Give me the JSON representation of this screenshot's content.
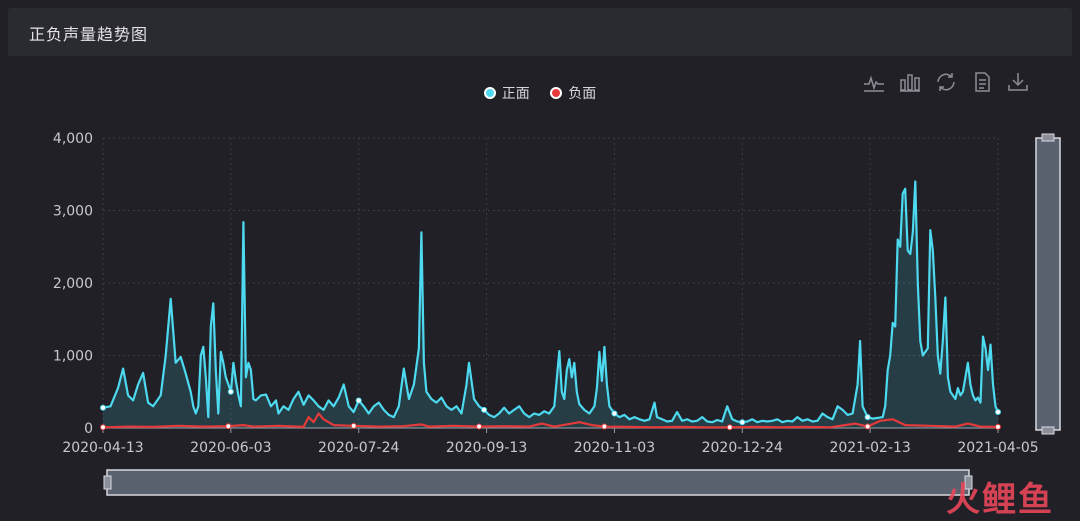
{
  "header": {
    "title": "正负声量趋势图"
  },
  "legend": {
    "items": [
      {
        "label": "正面",
        "color": "#4dd9ef"
      },
      {
        "label": "负面",
        "color": "#e53a3a"
      }
    ]
  },
  "toolbox": [
    "line-chart-icon",
    "bar-chart-icon",
    "refresh-icon",
    "data-view-icon",
    "download-icon"
  ],
  "watermark": {
    "text": "火鲤鱼"
  },
  "chart_data": {
    "type": "line",
    "x_ticks": [
      "2020-04-13",
      "2020-06-03",
      "2020-07-24",
      "2020-09-13",
      "2020-11-03",
      "2020-12-24",
      "2021-02-13",
      "2021-04-05"
    ],
    "y_ticks": [
      "0",
      "1,000",
      "2,000",
      "3,000",
      "4,000"
    ],
    "ylim": [
      0,
      4000
    ],
    "x_range_days": [
      0,
      357
    ],
    "grid": true,
    "legend_position": "top-center",
    "series": [
      {
        "name": "正面",
        "color": "#4dd9ef",
        "area": true,
        "points": [
          [
            0,
            280
          ],
          [
            3,
            300
          ],
          [
            6,
            550
          ],
          [
            8,
            820
          ],
          [
            10,
            450
          ],
          [
            12,
            380
          ],
          [
            14,
            600
          ],
          [
            16,
            760
          ],
          [
            18,
            350
          ],
          [
            20,
            300
          ],
          [
            23,
            450
          ],
          [
            25,
            1000
          ],
          [
            27,
            1780
          ],
          [
            29,
            900
          ],
          [
            31,
            980
          ],
          [
            33,
            750
          ],
          [
            35,
            500
          ],
          [
            36,
            300
          ],
          [
            37,
            200
          ],
          [
            38,
            300
          ],
          [
            39,
            1000
          ],
          [
            40,
            1120
          ],
          [
            41,
            700
          ],
          [
            42,
            150
          ],
          [
            43,
            1400
          ],
          [
            44,
            1720
          ],
          [
            45,
            800
          ],
          [
            46,
            200
          ],
          [
            47,
            1050
          ],
          [
            48,
            900
          ],
          [
            49,
            700
          ],
          [
            50,
            600
          ],
          [
            51,
            500
          ],
          [
            52,
            900
          ],
          [
            53,
            650
          ],
          [
            54,
            450
          ],
          [
            55,
            300
          ],
          [
            56,
            2840
          ],
          [
            57,
            700
          ],
          [
            58,
            900
          ],
          [
            59,
            800
          ],
          [
            60,
            400
          ],
          [
            61,
            380
          ],
          [
            63,
            450
          ],
          [
            65,
            460
          ],
          [
            67,
            300
          ],
          [
            69,
            380
          ],
          [
            70,
            200
          ],
          [
            72,
            300
          ],
          [
            74,
            250
          ],
          [
            76,
            400
          ],
          [
            78,
            500
          ],
          [
            80,
            320
          ],
          [
            82,
            450
          ],
          [
            84,
            380
          ],
          [
            86,
            300
          ],
          [
            88,
            250
          ],
          [
            90,
            380
          ],
          [
            92,
            300
          ],
          [
            94,
            420
          ],
          [
            96,
            600
          ],
          [
            98,
            300
          ],
          [
            100,
            220
          ],
          [
            102,
            380
          ],
          [
            104,
            300
          ],
          [
            106,
            200
          ],
          [
            108,
            300
          ],
          [
            110,
            350
          ],
          [
            112,
            250
          ],
          [
            114,
            180
          ],
          [
            116,
            150
          ],
          [
            118,
            300
          ],
          [
            120,
            820
          ],
          [
            122,
            400
          ],
          [
            124,
            600
          ],
          [
            126,
            1100
          ],
          [
            127,
            2700
          ],
          [
            128,
            900
          ],
          [
            129,
            500
          ],
          [
            131,
            400
          ],
          [
            133,
            350
          ],
          [
            135,
            420
          ],
          [
            137,
            300
          ],
          [
            139,
            250
          ],
          [
            141,
            300
          ],
          [
            143,
            200
          ],
          [
            145,
            600
          ],
          [
            146,
            900
          ],
          [
            148,
            400
          ],
          [
            150,
            300
          ],
          [
            152,
            250
          ],
          [
            154,
            180
          ],
          [
            156,
            150
          ],
          [
            158,
            200
          ],
          [
            160,
            280
          ],
          [
            162,
            200
          ],
          [
            164,
            250
          ],
          [
            166,
            300
          ],
          [
            168,
            200
          ],
          [
            170,
            150
          ],
          [
            172,
            200
          ],
          [
            174,
            180
          ],
          [
            176,
            230
          ],
          [
            178,
            200
          ],
          [
            180,
            300
          ],
          [
            182,
            1060
          ],
          [
            183,
            500
          ],
          [
            184,
            400
          ],
          [
            185,
            800
          ],
          [
            186,
            950
          ],
          [
            187,
            700
          ],
          [
            188,
            900
          ],
          [
            189,
            500
          ],
          [
            190,
            330
          ],
          [
            192,
            250
          ],
          [
            194,
            200
          ],
          [
            196,
            300
          ],
          [
            197,
            550
          ],
          [
            198,
            1050
          ],
          [
            199,
            650
          ],
          [
            200,
            1120
          ],
          [
            201,
            600
          ],
          [
            202,
            300
          ],
          [
            204,
            200
          ],
          [
            206,
            150
          ],
          [
            208,
            180
          ],
          [
            210,
            120
          ],
          [
            212,
            150
          ],
          [
            214,
            120
          ],
          [
            216,
            100
          ],
          [
            218,
            120
          ],
          [
            220,
            350
          ],
          [
            221,
            150
          ],
          [
            223,
            120
          ],
          [
            225,
            90
          ],
          [
            227,
            100
          ],
          [
            229,
            220
          ],
          [
            231,
            100
          ],
          [
            233,
            120
          ],
          [
            235,
            90
          ],
          [
            237,
            100
          ],
          [
            239,
            150
          ],
          [
            241,
            90
          ],
          [
            243,
            80
          ],
          [
            245,
            110
          ],
          [
            247,
            90
          ],
          [
            249,
            300
          ],
          [
            251,
            120
          ],
          [
            253,
            90
          ],
          [
            255,
            80
          ],
          [
            257,
            90
          ],
          [
            259,
            120
          ],
          [
            261,
            80
          ],
          [
            263,
            100
          ],
          [
            265,
            90
          ],
          [
            267,
            100
          ],
          [
            269,
            120
          ],
          [
            271,
            80
          ],
          [
            273,
            100
          ],
          [
            275,
            90
          ],
          [
            277,
            150
          ],
          [
            279,
            100
          ],
          [
            281,
            120
          ],
          [
            283,
            90
          ],
          [
            285,
            100
          ],
          [
            287,
            200
          ],
          [
            289,
            150
          ],
          [
            291,
            120
          ],
          [
            293,
            300
          ],
          [
            295,
            250
          ],
          [
            297,
            180
          ],
          [
            299,
            200
          ],
          [
            301,
            600
          ],
          [
            302,
            1200
          ],
          [
            303,
            300
          ],
          [
            305,
            150
          ],
          [
            307,
            130
          ],
          [
            309,
            140
          ],
          [
            311,
            150
          ],
          [
            312,
            300
          ],
          [
            313,
            800
          ],
          [
            314,
            1000
          ],
          [
            315,
            1450
          ],
          [
            316,
            1400
          ],
          [
            317,
            2600
          ],
          [
            318,
            2500
          ],
          [
            319,
            3230
          ],
          [
            320,
            3300
          ],
          [
            321,
            2450
          ],
          [
            322,
            2400
          ],
          [
            323,
            2700
          ],
          [
            324,
            3400
          ],
          [
            325,
            2000
          ],
          [
            326,
            1200
          ],
          [
            327,
            1000
          ],
          [
            328,
            1050
          ],
          [
            329,
            1100
          ],
          [
            330,
            2730
          ],
          [
            331,
            2450
          ],
          [
            332,
            1800
          ],
          [
            333,
            1000
          ],
          [
            334,
            750
          ],
          [
            335,
            1200
          ],
          [
            336,
            1800
          ],
          [
            337,
            700
          ],
          [
            338,
            500
          ],
          [
            339,
            450
          ],
          [
            340,
            400
          ],
          [
            341,
            550
          ],
          [
            342,
            450
          ],
          [
            343,
            500
          ],
          [
            344,
            700
          ],
          [
            345,
            900
          ],
          [
            346,
            600
          ],
          [
            347,
            450
          ],
          [
            348,
            380
          ],
          [
            349,
            420
          ],
          [
            350,
            350
          ],
          [
            351,
            1260
          ],
          [
            352,
            1100
          ],
          [
            353,
            800
          ],
          [
            354,
            1150
          ],
          [
            355,
            600
          ],
          [
            356,
            300
          ],
          [
            357,
            220
          ]
        ]
      },
      {
        "name": "负面",
        "color": "#e53a3a",
        "area": false,
        "points": [
          [
            0,
            10
          ],
          [
            10,
            20
          ],
          [
            20,
            15
          ],
          [
            30,
            30
          ],
          [
            40,
            20
          ],
          [
            50,
            25
          ],
          [
            56,
            40
          ],
          [
            60,
            20
          ],
          [
            70,
            30
          ],
          [
            80,
            15
          ],
          [
            82,
            150
          ],
          [
            84,
            80
          ],
          [
            86,
            200
          ],
          [
            88,
            120
          ],
          [
            90,
            80
          ],
          [
            92,
            40
          ],
          [
            100,
            30
          ],
          [
            110,
            20
          ],
          [
            120,
            25
          ],
          [
            127,
            50
          ],
          [
            130,
            20
          ],
          [
            140,
            30
          ],
          [
            150,
            20
          ],
          [
            160,
            25
          ],
          [
            170,
            20
          ],
          [
            175,
            60
          ],
          [
            180,
            20
          ],
          [
            190,
            80
          ],
          [
            195,
            40
          ],
          [
            200,
            20
          ],
          [
            210,
            15
          ],
          [
            220,
            10
          ],
          [
            230,
            15
          ],
          [
            240,
            10
          ],
          [
            250,
            10
          ],
          [
            260,
            15
          ],
          [
            270,
            10
          ],
          [
            280,
            15
          ],
          [
            290,
            10
          ],
          [
            300,
            60
          ],
          [
            305,
            20
          ],
          [
            310,
            100
          ],
          [
            315,
            120
          ],
          [
            320,
            40
          ],
          [
            330,
            30
          ],
          [
            340,
            20
          ],
          [
            345,
            60
          ],
          [
            350,
            20
          ],
          [
            357,
            15
          ]
        ]
      }
    ]
  }
}
